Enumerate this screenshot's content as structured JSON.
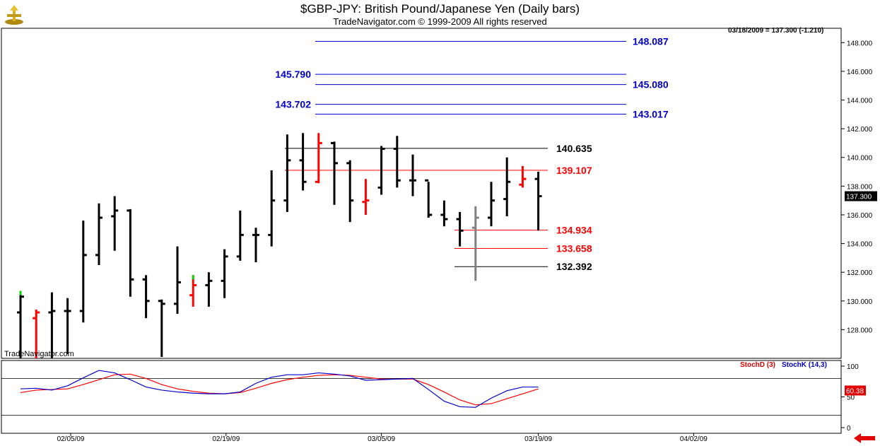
{
  "header": {
    "title": "$GBP-JPY:  British Pound/Japanese Yen  (Daily bars)",
    "subtitle": "TradeNavigator.com © 1999-2009 All rights reserved",
    "readout": "03/18/2009 = 137.300 (-1.210)",
    "watermark": "TradeNavigator.com"
  },
  "colors": {
    "bar": "#000000",
    "bar_red": "#ff0000",
    "bar_green": "#00dd00",
    "bar_gray": "#808080",
    "level_blue": "#0000cc",
    "level_red": "#ff0000",
    "level_black": "#000000",
    "stochD": "#e00000",
    "stochK": "#0000c0"
  },
  "chart_data": [
    {
      "type": "ohlc",
      "ylim": [
        126,
        149
      ],
      "y_ticks": [
        "128.000",
        "130.000",
        "132.000",
        "134.000",
        "136.000",
        "138.000",
        "140.000",
        "142.000",
        "144.000",
        "146.000",
        "148.000"
      ],
      "x_ticks": [
        "02/05/09",
        "02/19/09",
        "03/05/09",
        "03/19/09",
        "04/02/09"
      ],
      "last_price_label": "137.300",
      "bars": [
        {
          "o": 129.2,
          "h": 130.7,
          "l": 126.0,
          "c": 130.3,
          "color": "black",
          "high_color": "green"
        },
        {
          "o": 128.8,
          "h": 129.4,
          "l": 125.9,
          "c": 129.2,
          "color": "red"
        },
        {
          "o": 129.2,
          "h": 130.6,
          "l": 126.0,
          "c": 129.3,
          "color": "black"
        },
        {
          "o": 129.3,
          "h": 130.2,
          "l": 126.3,
          "c": 129.3,
          "color": "black"
        },
        {
          "o": 129.3,
          "h": 135.6,
          "l": 128.5,
          "c": 133.2,
          "color": "black"
        },
        {
          "o": 133.2,
          "h": 136.8,
          "l": 132.5,
          "c": 135.8,
          "color": "black"
        },
        {
          "o": 135.9,
          "h": 137.3,
          "l": 133.5,
          "c": 136.3,
          "color": "black"
        },
        {
          "o": 136.3,
          "h": 136.4,
          "l": 130.3,
          "c": 131.5,
          "color": "black"
        },
        {
          "o": 131.5,
          "h": 131.8,
          "l": 128.8,
          "c": 130.0,
          "color": "black"
        },
        {
          "o": 130.0,
          "h": 130.1,
          "l": 126.1,
          "c": 129.8,
          "color": "black"
        },
        {
          "o": 129.8,
          "h": 133.8,
          "l": 129.1,
          "c": 131.3,
          "color": "black"
        },
        {
          "o": 130.4,
          "h": 131.8,
          "l": 129.6,
          "c": 131.1,
          "color": "red",
          "high_color": "green"
        },
        {
          "o": 131.1,
          "h": 132.0,
          "l": 129.6,
          "c": 131.4,
          "color": "black"
        },
        {
          "o": 131.4,
          "h": 133.6,
          "l": 130.2,
          "c": 133.1,
          "color": "black"
        },
        {
          "o": 133.1,
          "h": 136.3,
          "l": 132.8,
          "c": 134.6,
          "color": "black"
        },
        {
          "o": 134.6,
          "h": 135.1,
          "l": 132.7,
          "c": 134.6,
          "color": "black"
        },
        {
          "o": 134.6,
          "h": 139.1,
          "l": 133.8,
          "c": 137.0,
          "color": "black"
        },
        {
          "o": 137.0,
          "h": 141.6,
          "l": 136.2,
          "c": 139.8,
          "color": "black"
        },
        {
          "o": 139.8,
          "h": 141.7,
          "l": 137.7,
          "c": 138.3,
          "color": "black"
        },
        {
          "o": 138.3,
          "h": 141.7,
          "l": 138.2,
          "c": 141.0,
          "color": "red"
        },
        {
          "o": 141.0,
          "h": 141.1,
          "l": 136.7,
          "c": 139.6,
          "color": "black"
        },
        {
          "o": 139.6,
          "h": 139.8,
          "l": 135.5,
          "c": 137.0,
          "color": "black"
        },
        {
          "o": 136.9,
          "h": 138.5,
          "l": 136.0,
          "c": 137.0,
          "color": "red"
        },
        {
          "o": 137.9,
          "h": 140.8,
          "l": 137.4,
          "c": 140.6,
          "color": "black"
        },
        {
          "o": 140.6,
          "h": 141.5,
          "l": 137.9,
          "c": 138.4,
          "color": "black"
        },
        {
          "o": 138.4,
          "h": 140.2,
          "l": 137.3,
          "c": 138.4,
          "color": "black"
        },
        {
          "o": 138.4,
          "h": 138.3,
          "l": 135.8,
          "c": 136.0,
          "color": "black"
        },
        {
          "o": 136.0,
          "h": 137.0,
          "l": 135.2,
          "c": 135.7,
          "color": "black"
        },
        {
          "o": 135.7,
          "h": 136.2,
          "l": 133.8,
          "c": 134.9,
          "color": "black"
        },
        {
          "o": 135.1,
          "h": 136.6,
          "l": 131.4,
          "c": 135.8,
          "color": "gray"
        },
        {
          "o": 135.8,
          "h": 138.3,
          "l": 135.2,
          "c": 137.0,
          "color": "black"
        },
        {
          "o": 137.1,
          "h": 140.0,
          "l": 135.9,
          "c": 138.3,
          "color": "black"
        },
        {
          "o": 138.1,
          "h": 139.4,
          "l": 137.9,
          "c": 138.5,
          "color": "red"
        },
        {
          "o": 138.5,
          "h": 139.0,
          "l": 134.9,
          "c": 137.3,
          "color": "black"
        }
      ],
      "levels": [
        {
          "value": 148.087,
          "label": "148.087",
          "color": "blue",
          "side": "right"
        },
        {
          "value": 145.79,
          "label": "145.790",
          "color": "blue",
          "side": "left"
        },
        {
          "value": 145.08,
          "label": "145.080",
          "color": "blue",
          "side": "right"
        },
        {
          "value": 143.702,
          "label": "143.702",
          "color": "blue",
          "side": "left"
        },
        {
          "value": 143.017,
          "label": "143.017",
          "color": "blue",
          "side": "right"
        },
        {
          "value": 140.635,
          "label": "140.635",
          "color": "black",
          "side": "right"
        },
        {
          "value": 139.107,
          "label": "139.107",
          "color": "red",
          "side": "right"
        },
        {
          "value": 134.934,
          "label": "134.934",
          "color": "red",
          "side": "right"
        },
        {
          "value": 133.658,
          "label": "133.658",
          "color": "red",
          "side": "right"
        },
        {
          "value": 132.392,
          "label": "132.392",
          "color": "black",
          "side": "right"
        }
      ]
    },
    {
      "type": "line",
      "ylim": [
        0,
        100
      ],
      "y_ticks": [
        "0",
        "50",
        "100"
      ],
      "reference_lines": [
        80,
        20
      ],
      "last_value_label": "60.38",
      "series": [
        {
          "name": "StochD (3)",
          "color": "red",
          "values": [
            57,
            61,
            62,
            63,
            70,
            78,
            86,
            87,
            80,
            70,
            63,
            59,
            56,
            55,
            57,
            64,
            72,
            78,
            82,
            85,
            86,
            85,
            82,
            79,
            79,
            79,
            70,
            58,
            45,
            37,
            39,
            47,
            55,
            63
          ]
        },
        {
          "name": "StochK (14,3)",
          "color": "blue",
          "values": [
            63,
            64,
            61,
            68,
            81,
            93,
            89,
            78,
            66,
            61,
            58,
            56,
            55,
            55,
            58,
            72,
            82,
            86,
            86,
            89,
            87,
            84,
            77,
            78,
            79,
            80,
            62,
            43,
            34,
            33,
            48,
            60,
            66,
            66
          ]
        }
      ]
    }
  ]
}
